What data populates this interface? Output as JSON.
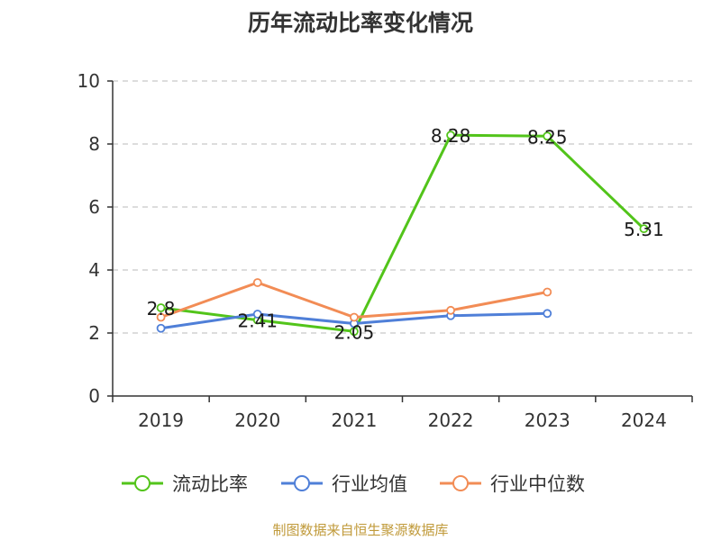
{
  "chart_data": {
    "type": "line",
    "title": "历年流动比率变化情况",
    "categories": [
      "2019",
      "2020",
      "2021",
      "2022",
      "2023",
      "2024"
    ],
    "ylim": [
      0,
      10
    ],
    "yticks": [
      0,
      2,
      4,
      6,
      8,
      10
    ],
    "grid": true,
    "legend_position": "bottom",
    "series": [
      {
        "name": "流动比率",
        "color": "#52c41a",
        "values": [
          2.8,
          2.41,
          2.05,
          8.28,
          8.25,
          5.31
        ],
        "labels": [
          "2.8",
          "2.41",
          "2.05",
          "8.28",
          "8.25",
          "5.31"
        ]
      },
      {
        "name": "行业均值",
        "color": "#4f7fd8",
        "values": [
          2.15,
          2.6,
          2.3,
          2.55,
          2.62,
          null
        ]
      },
      {
        "name": "行业中位数",
        "color": "#f28c55",
        "values": [
          2.5,
          3.6,
          2.5,
          2.72,
          3.3,
          null
        ]
      }
    ]
  },
  "source": "制图数据来自恒生聚源数据库"
}
